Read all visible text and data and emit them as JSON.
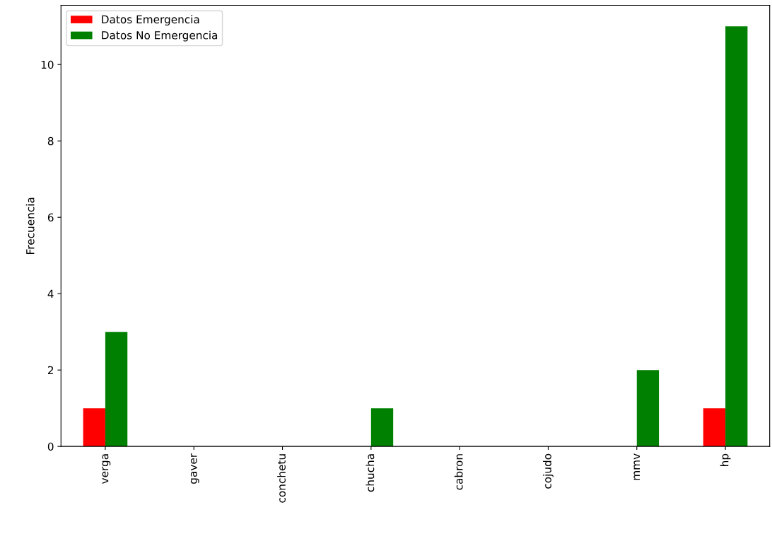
{
  "chart_data": {
    "type": "bar",
    "ylabel": "Frecuencia",
    "categories": [
      "verga",
      "gaver",
      "conchetu",
      "chucha",
      "cabron",
      "cojudo",
      "mmv",
      "hp"
    ],
    "series": [
      {
        "name": "Datos Emergencia",
        "color": "#ff0000",
        "values": [
          1,
          0,
          0,
          0,
          0,
          0,
          0,
          1
        ]
      },
      {
        "name": "Datos No Emergencia",
        "color": "#008000",
        "values": [
          3,
          0,
          0,
          1,
          0,
          0,
          2,
          11
        ]
      }
    ],
    "ylim": [
      0,
      11.55
    ],
    "yticks": [
      0,
      2,
      4,
      6,
      8,
      10
    ],
    "grid": false,
    "legend": "top left"
  }
}
